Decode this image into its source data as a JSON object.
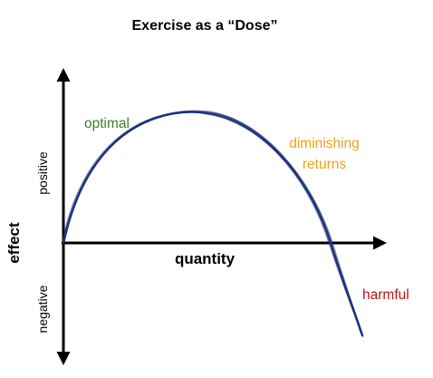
{
  "diagram": {
    "title": "Exercise as a “Dose”",
    "x_axis_label": "quantity",
    "y_axis_label": "effect",
    "y_positive_label": "positive",
    "y_negative_label": "negative",
    "regions": [
      {
        "label": "optimal",
        "color": "#3a7d2c"
      },
      {
        "label": "diminishing",
        "color": "#e8a317"
      },
      {
        "label": "returns",
        "color": "#e8a317"
      },
      {
        "label": "harmful",
        "color": "#b81414"
      }
    ],
    "axis_color": "#000000",
    "curve_color": "#1c2f7a",
    "curve_shape": "inverted-parabola"
  }
}
